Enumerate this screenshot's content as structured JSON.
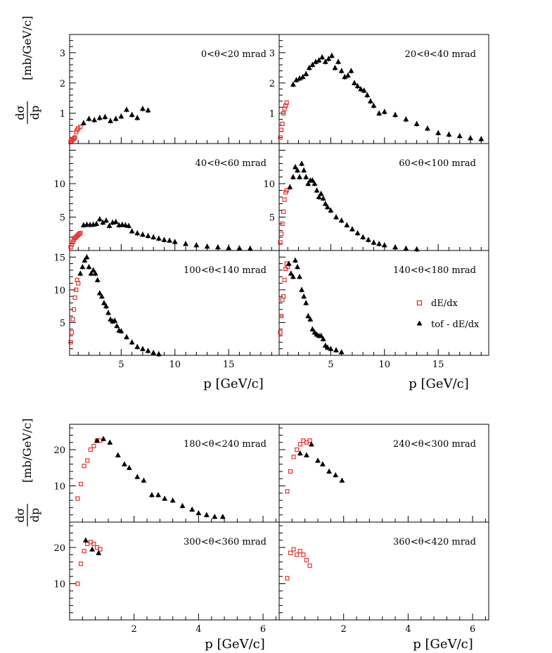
{
  "y_axis_label": {
    "numerator": "dσ",
    "denominator": "dp",
    "unit": "[mb/GeV/c]"
  },
  "x_axis_label": "p [GeV/c]",
  "legend": [
    {
      "label": "dE/dx",
      "marker": "open-square",
      "color": "#e8302a"
    },
    {
      "label": "tof - dE/dx",
      "marker": "filled-triangle",
      "color": "#000000"
    }
  ],
  "colors": {
    "dedx": "#e8302a",
    "tof": "#000000",
    "frame": "#000000"
  },
  "chart_data": [
    {
      "type": "scatter",
      "group": "top",
      "xlim": [
        0.2,
        19.7
      ],
      "x_ticks": [
        "5",
        "10",
        "15"
      ],
      "panels": [
        {
          "label": "0<θ<20 mrad",
          "ylim": [
            0,
            3.6
          ],
          "y_ticks": [
            "1",
            "2",
            "3"
          ],
          "series": [
            {
              "name": "dE/dx",
              "x": [
                0.3,
                0.4,
                0.5,
                0.6,
                0.7,
                0.8,
                0.9,
                1.0,
                1.2
              ],
              "y": [
                0.05,
                0.1,
                0.13,
                0.17,
                0.2,
                0.38,
                0.45,
                0.5,
                0.55
              ]
            },
            {
              "name": "tof - dE/dx",
              "x": [
                1.5,
                2.0,
                2.5,
                3.0,
                3.5,
                4.0,
                4.5,
                5.0,
                5.5,
                6.0,
                6.5,
                7.0,
                7.5
              ],
              "y": [
                0.68,
                0.82,
                0.78,
                0.85,
                0.88,
                0.75,
                0.82,
                0.9,
                1.12,
                0.95,
                0.85,
                1.15,
                1.1
              ]
            }
          ]
        },
        {
          "label": "20<θ<40 mrad",
          "ylim": [
            0,
            3.6
          ],
          "y_ticks": [
            "1",
            "2",
            "3"
          ],
          "series": [
            {
              "name": "dE/dx",
              "x": [
                0.3,
                0.4,
                0.5,
                0.6,
                0.7,
                0.8,
                0.9
              ],
              "y": [
                0.2,
                0.45,
                0.65,
                1.0,
                1.15,
                1.25,
                1.35
              ]
            },
            {
              "name": "tof - dE/dx",
              "x": [
                1.5,
                1.8,
                2.1,
                2.4,
                2.7,
                3.0,
                3.3,
                3.6,
                3.9,
                4.2,
                4.5,
                4.8,
                5.1,
                5.4,
                5.7,
                6.0,
                6.3,
                6.6,
                6.9,
                7.2,
                7.5,
                7.8,
                8.1,
                8.4,
                8.7,
                9.0,
                9.5,
                10.0,
                11.0,
                12.0,
                13.0,
                14.0,
                15.0,
                16.0,
                17.0,
                18.0,
                19.0
              ],
              "y": [
                1.95,
                2.1,
                2.15,
                2.2,
                2.3,
                2.5,
                2.6,
                2.7,
                2.75,
                2.85,
                2.7,
                2.8,
                2.9,
                2.5,
                2.7,
                2.4,
                2.2,
                2.25,
                2.4,
                2.0,
                1.9,
                1.8,
                1.75,
                1.6,
                1.4,
                1.25,
                1.0,
                1.05,
                0.95,
                0.8,
                0.65,
                0.5,
                0.35,
                0.3,
                0.25,
                0.18,
                0.15
              ]
            }
          ]
        },
        {
          "label": "40<θ<60 mrad",
          "ylim": [
            0,
            16
          ],
          "y_ticks": [
            "5",
            "10"
          ],
          "series": [
            {
              "name": "dE/dx",
              "x": [
                0.3,
                0.4,
                0.5,
                0.6,
                0.7,
                0.8,
                0.9,
                1.0,
                1.1,
                1.2
              ],
              "y": [
                0.5,
                0.9,
                1.3,
                1.6,
                1.9,
                2.0,
                2.2,
                2.35,
                2.5,
                2.6
              ]
            },
            {
              "name": "tof - dE/dx",
              "x": [
                1.5,
                1.8,
                2.1,
                2.4,
                2.7,
                3.0,
                3.3,
                3.6,
                3.9,
                4.2,
                4.5,
                4.8,
                5.1,
                5.4,
                5.7,
                6.0,
                6.5,
                7.0,
                7.5,
                8.0,
                8.5,
                9.0,
                9.5,
                10.0,
                11.0,
                12.0,
                13.0,
                14.0,
                15.0,
                16.0,
                17.0
              ],
              "y": [
                3.8,
                3.9,
                3.85,
                3.9,
                4.0,
                4.7,
                4.2,
                4.5,
                3.7,
                4.2,
                4.3,
                3.8,
                3.9,
                3.8,
                3.7,
                2.9,
                2.6,
                2.4,
                2.2,
                2.0,
                1.8,
                1.6,
                1.5,
                1.3,
                1.0,
                0.8,
                0.6,
                0.5,
                0.4,
                0.35,
                0.3
              ]
            }
          ]
        },
        {
          "label": "60<θ<100 mrad",
          "ylim": [
            0,
            16
          ],
          "y_ticks": [
            "5",
            "10"
          ],
          "series": [
            {
              "name": "dE/dx",
              "x": [
                0.3,
                0.4,
                0.5,
                0.6,
                0.7,
                0.8,
                0.9
              ],
              "y": [
                1.2,
                2.5,
                4.0,
                5.8,
                7.6,
                8.7,
                9.0
              ]
            },
            {
              "name": "tof - dE/dx",
              "x": [
                1.2,
                1.5,
                1.7,
                1.9,
                2.1,
                2.3,
                2.5,
                2.7,
                2.9,
                3.1,
                3.3,
                3.5,
                3.7,
                3.9,
                4.1,
                4.3,
                4.5,
                4.7,
                5.0,
                5.5,
                6.0,
                6.5,
                7.0,
                7.5,
                8.0,
                8.5,
                9.0,
                9.5,
                10.0,
                11.0,
                12.0,
                13.0
              ],
              "y": [
                9.5,
                11.0,
                12.5,
                12.0,
                11.0,
                13.0,
                12.0,
                11.0,
                10.0,
                10.5,
                10.5,
                10.0,
                9.0,
                8.0,
                8.5,
                7.8,
                7.0,
                6.5,
                6.0,
                5.0,
                4.5,
                3.8,
                3.2,
                2.6,
                2.0,
                1.6,
                1.2,
                1.0,
                0.8,
                0.5,
                0.3,
                0.2
              ]
            }
          ]
        },
        {
          "label": "100<θ<140 mrad",
          "ylim": [
            0,
            16
          ],
          "y_ticks": [
            "5",
            "10",
            "15"
          ],
          "series": [
            {
              "name": "dE/dx",
              "x": [
                0.3,
                0.4,
                0.5,
                0.6,
                0.7,
                0.8,
                0.9,
                1.0
              ],
              "y": [
                2.0,
                3.5,
                5.5,
                7.0,
                8.8,
                10.0,
                11.5,
                11.0
              ]
            },
            {
              "name": "tof - dE/dx",
              "x": [
                1.2,
                1.4,
                1.6,
                1.8,
                2.0,
                2.2,
                2.4,
                2.6,
                2.8,
                3.0,
                3.2,
                3.4,
                3.6,
                3.8,
                4.0,
                4.2,
                4.4,
                4.6,
                4.8,
                5.0,
                5.5,
                6.0,
                6.5,
                7.0,
                7.5,
                8.0,
                8.5
              ],
              "y": [
                12.5,
                13.5,
                14.5,
                15.0,
                13.5,
                12.5,
                13.0,
                12.5,
                11.5,
                9.5,
                9.0,
                8.0,
                7.5,
                6.5,
                5.5,
                5.2,
                5.3,
                4.5,
                3.8,
                3.7,
                2.8,
                2.0,
                1.3,
                1.0,
                0.7,
                0.4,
                0.2
              ]
            }
          ]
        },
        {
          "label": "140<θ<180 mrad",
          "ylim": [
            0,
            16
          ],
          "y_ticks": [],
          "series": [
            {
              "name": "dE/dx",
              "x": [
                0.3,
                0.4,
                0.5,
                0.6,
                0.7,
                0.8,
                0.9,
                1.0
              ],
              "y": [
                3.5,
                6.0,
                8.5,
                9.0,
                11.5,
                13.2,
                14.0,
                13.5
              ]
            },
            {
              "name": "tof - dE/dx",
              "x": [
                1.1,
                1.3,
                1.5,
                1.7,
                1.9,
                2.1,
                2.3,
                2.5,
                2.7,
                2.9,
                3.1,
                3.3,
                3.5,
                3.7,
                3.9,
                4.1,
                4.3,
                4.5,
                4.7,
                5.0,
                5.5,
                6.0
              ],
              "y": [
                14.0,
                12.5,
                12.0,
                14.5,
                13.5,
                12.0,
                10.0,
                9.0,
                8.0,
                6.0,
                5.5,
                4.0,
                3.5,
                3.2,
                3.0,
                3.0,
                2.5,
                1.5,
                1.2,
                1.0,
                0.8,
                0.5
              ]
            }
          ]
        }
      ]
    },
    {
      "type": "scatter",
      "group": "bottom",
      "xlim": [
        0.0,
        6.5
      ],
      "x_ticks": [
        "2",
        "4",
        "6"
      ],
      "panels": [
        {
          "label": "180<θ<240 mrad",
          "ylim": [
            0,
            27
          ],
          "y_ticks": [
            "10",
            "20"
          ],
          "series": [
            {
              "name": "dE/dx",
              "x": [
                0.25,
                0.35,
                0.45,
                0.55,
                0.65,
                0.75,
                0.85,
                0.95
              ],
              "y": [
                6.5,
                10.5,
                15.5,
                17.0,
                20.0,
                21.0,
                22.5,
                22.5
              ]
            },
            {
              "name": "tof - dE/dx",
              "x": [
                0.85,
                1.05,
                1.25,
                1.5,
                1.7,
                1.85,
                2.1,
                2.3,
                2.55,
                2.75,
                2.95,
                3.2,
                3.5,
                3.8,
                4.0,
                4.25,
                4.5,
                4.75
              ],
              "y": [
                22.5,
                23.0,
                22.0,
                18.5,
                16.0,
                15.0,
                12.5,
                11.5,
                7.5,
                7.5,
                6.5,
                6.0,
                4.5,
                3.5,
                2.5,
                2.0,
                1.5,
                1.5
              ]
            }
          ]
        },
        {
          "label": "240<θ<300 mrad",
          "ylim": [
            0,
            27
          ],
          "y_ticks": [],
          "series": [
            {
              "name": "dE/dx",
              "x": [
                0.25,
                0.35,
                0.45,
                0.55,
                0.65,
                0.75,
                0.85,
                0.95
              ],
              "y": [
                8.5,
                14.0,
                18.0,
                20.0,
                21.5,
                22.5,
                22.0,
                22.5
              ]
            },
            {
              "name": "tof - dE/dx",
              "x": [
                0.65,
                0.85,
                1.0,
                1.2,
                1.35,
                1.55,
                1.75,
                1.95
              ],
              "y": [
                19.0,
                18.5,
                21.5,
                17.0,
                16.0,
                14.0,
                13.0,
                11.5
              ]
            }
          ]
        },
        {
          "label": "300<θ<360 mrad",
          "ylim": [
            0,
            27
          ],
          "y_ticks": [
            "10",
            "20"
          ],
          "series": [
            {
              "name": "dE/dx",
              "x": [
                0.25,
                0.35,
                0.45,
                0.55,
                0.65,
                0.75,
                0.85,
                0.95
              ],
              "y": [
                10.0,
                15.5,
                19.0,
                21.0,
                21.5,
                21.0,
                20.0,
                19.5
              ]
            },
            {
              "name": "tof - dE/dx",
              "x": [
                0.5,
                0.7,
                0.9
              ],
              "y": [
                22.0,
                19.5,
                18.5
              ]
            }
          ]
        },
        {
          "label": "360<θ<420 mrad",
          "ylim": [
            0,
            27
          ],
          "y_ticks": [],
          "series": [
            {
              "name": "dE/dx",
              "x": [
                0.25,
                0.35,
                0.45,
                0.55,
                0.65,
                0.75,
                0.85,
                0.95
              ],
              "y": [
                11.5,
                18.5,
                19.5,
                18.0,
                19.0,
                18.0,
                16.5,
                15.0
              ]
            }
          ]
        }
      ]
    }
  ]
}
